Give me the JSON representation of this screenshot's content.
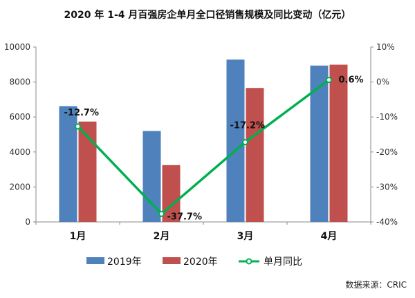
{
  "chart_data": {
    "type": "bar",
    "title": "2020 年 1-4 月百强房企单月全口径销售规模及同比变动（亿元）",
    "categories": [
      "1月",
      "2月",
      "3月",
      "4月"
    ],
    "series": [
      {
        "name": "2019年",
        "type": "bar",
        "axis": "left",
        "color": "#4F81BD",
        "values": [
          6620,
          5200,
          9280,
          8940
        ]
      },
      {
        "name": "2020年",
        "type": "bar",
        "axis": "left",
        "color": "#C0504D",
        "values": [
          5740,
          3250,
          7660,
          8990
        ]
      },
      {
        "name": "单月同比",
        "type": "line",
        "axis": "right",
        "color": "#00B050",
        "values": [
          -12.7,
          -37.7,
          -17.2,
          0.6
        ],
        "labels": [
          "-12.7%",
          "-37.7%",
          "-17.2%",
          "0.6%"
        ]
      }
    ],
    "ylim_left": [
      0,
      10000
    ],
    "yticks_left": [
      "0",
      "2000",
      "4000",
      "6000",
      "8000",
      "10000"
    ],
    "ylim_right": [
      -40,
      10
    ],
    "yticks_right": [
      "-40%",
      "-30%",
      "-20%",
      "-10%",
      "0%",
      "10%"
    ],
    "grid": false,
    "legend": "bottom",
    "source": "数据来源：CRIC"
  }
}
